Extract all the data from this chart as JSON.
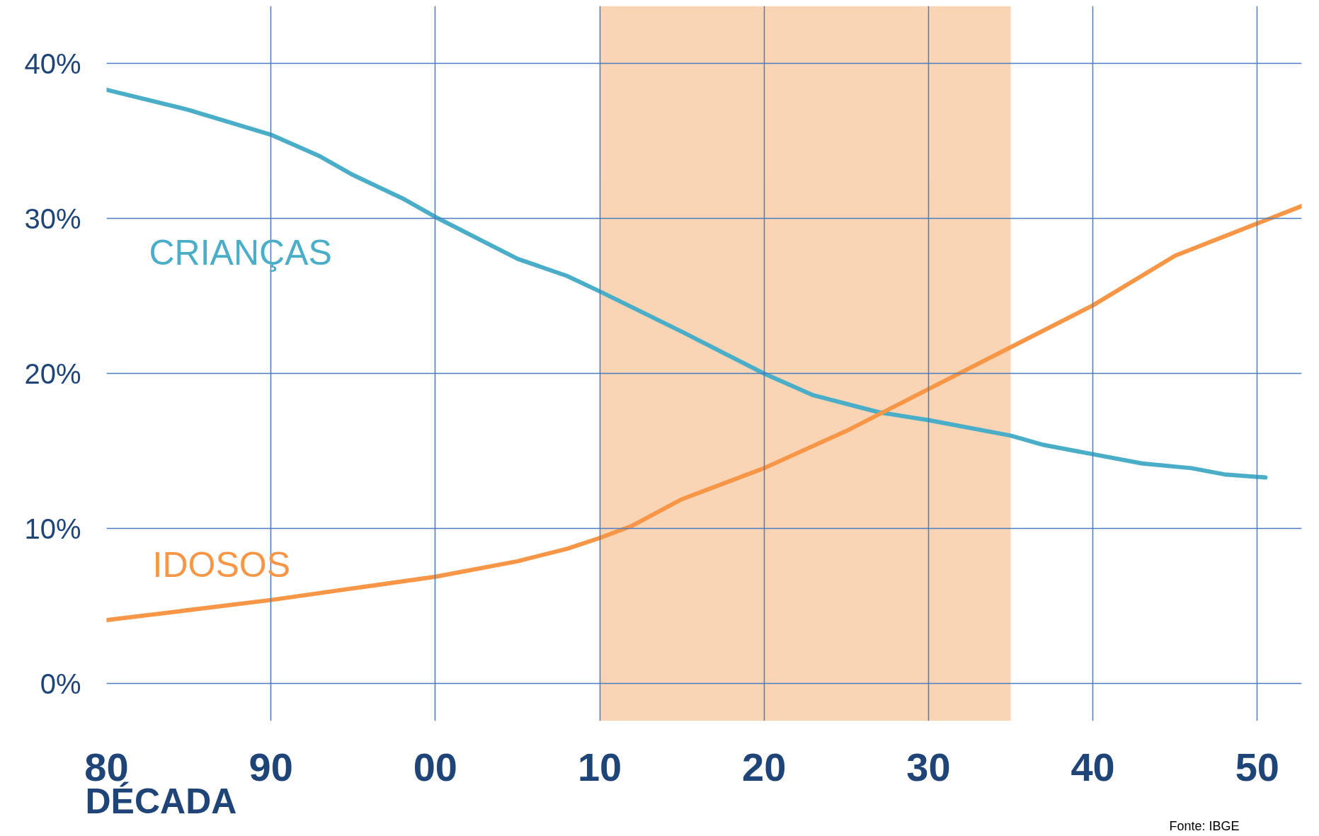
{
  "chart_data": {
    "type": "line",
    "xlabel": "DÉCADA",
    "xlim": [
      1980,
      2052.7
    ],
    "ylim": [
      -2.4,
      43.7
    ],
    "xticks": [
      {
        "value": 1980,
        "label": "80"
      },
      {
        "value": 1990,
        "label": "90"
      },
      {
        "value": 2000,
        "label": "00"
      },
      {
        "value": 2010,
        "label": "10"
      },
      {
        "value": 2020,
        "label": "20"
      },
      {
        "value": 2030,
        "label": "30"
      },
      {
        "value": 2040,
        "label": "40"
      },
      {
        "value": 2050,
        "label": "50"
      }
    ],
    "yticks": [
      {
        "value": 0,
        "label": "0%"
      },
      {
        "value": 10,
        "label": "10%"
      },
      {
        "value": 20,
        "label": "20%"
      },
      {
        "value": 30,
        "label": "30%"
      },
      {
        "value": 40,
        "label": "40%"
      }
    ],
    "grid": true,
    "marker": "none",
    "line_style": "solid",
    "bands": [
      {
        "axis": "x",
        "from": 2010,
        "to": 2035,
        "color": "#fad5b5"
      }
    ],
    "series": [
      {
        "name": "CRIANÇAS",
        "color": "#4aaec8",
        "x": [
          1980,
          1985,
          1990,
          1993,
          1995,
          1998,
          2000,
          2005,
          2008,
          2010,
          2015,
          2020,
          2023,
          2027,
          2030,
          2035,
          2037,
          2040,
          2043,
          2046,
          2048,
          2050.5
        ],
        "values": [
          38.3,
          37.0,
          35.4,
          34.0,
          32.8,
          31.3,
          30.1,
          27.4,
          26.3,
          25.3,
          22.7,
          20.0,
          18.6,
          17.5,
          17.0,
          16.0,
          15.4,
          14.8,
          14.2,
          13.9,
          13.5,
          13.3
        ]
      },
      {
        "name": "IDOSOS",
        "color": "#f79646",
        "x": [
          1980,
          1990,
          2000,
          2005,
          2008,
          2010,
          2012,
          2015,
          2020,
          2025,
          2030,
          2035,
          2040,
          2045,
          2052.7
        ],
        "values": [
          4.1,
          5.4,
          6.9,
          7.9,
          8.7,
          9.4,
          10.2,
          11.9,
          13.9,
          16.3,
          19.0,
          21.7,
          24.4,
          27.6,
          30.8
        ]
      }
    ],
    "annotations": [
      "Fonte: IBGE"
    ]
  }
}
